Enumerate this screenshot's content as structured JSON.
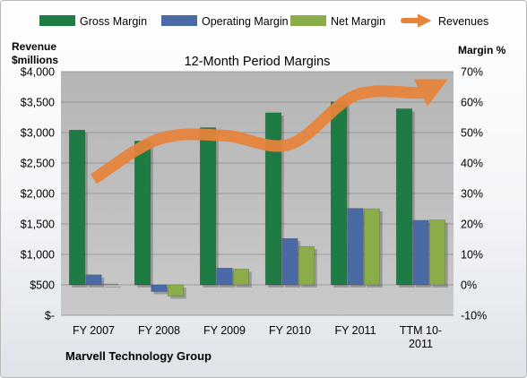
{
  "chart_data": {
    "type": "bar",
    "title": "12-Month Period Margins",
    "left_axis_title_line1": "Revenue",
    "left_axis_title_line2": "$millions",
    "right_axis_title": "Margin %",
    "company": "Marvell Technology Group",
    "categories": [
      {
        "line1": "FY 2007",
        "line2": ""
      },
      {
        "line1": "FY 2008",
        "line2": ""
      },
      {
        "line1": "FY 2009",
        "line2": ""
      },
      {
        "line1": "FY 2010",
        "line2": ""
      },
      {
        "line1": "FY 2011",
        "line2": ""
      },
      {
        "line1": "TTM 10-",
        "line2": "2011"
      }
    ],
    "left_axis": {
      "min": 0,
      "max": 4000,
      "step": 500,
      "tick_labels": [
        "$-",
        "$500",
        "$1,000",
        "$1,500",
        "$2,000",
        "$2,500",
        "$3,000",
        "$3,500",
        "$4,000"
      ]
    },
    "right_axis": {
      "min": -10,
      "max": 70,
      "step": 10,
      "tick_labels": [
        "-10%",
        "0%",
        "10%",
        "20%",
        "30%",
        "40%",
        "50%",
        "60%",
        "70%"
      ]
    },
    "series": [
      {
        "name": "Gross Margin",
        "axis": "right",
        "color": "#1e7b44",
        "values": [
          50.8,
          47.2,
          51.6,
          56.5,
          60.1,
          57.8
        ]
      },
      {
        "name": "Operating Margin",
        "axis": "right",
        "color": "#4a6aa5",
        "values": [
          3.3,
          -2.2,
          5.5,
          15.2,
          25.1,
          21.2
        ]
      },
      {
        "name": "Net Margin",
        "axis": "right",
        "color": "#8aad4a",
        "values": [
          0.3,
          -3.7,
          5.2,
          12.6,
          25.0,
          21.3
        ]
      },
      {
        "name": "Revenues",
        "axis": "left",
        "color": "#e8833a",
        "values": [
          2237,
          2895,
          2951,
          2808,
          3612,
          3653
        ]
      }
    ],
    "grid": true,
    "legend_position": "top"
  }
}
